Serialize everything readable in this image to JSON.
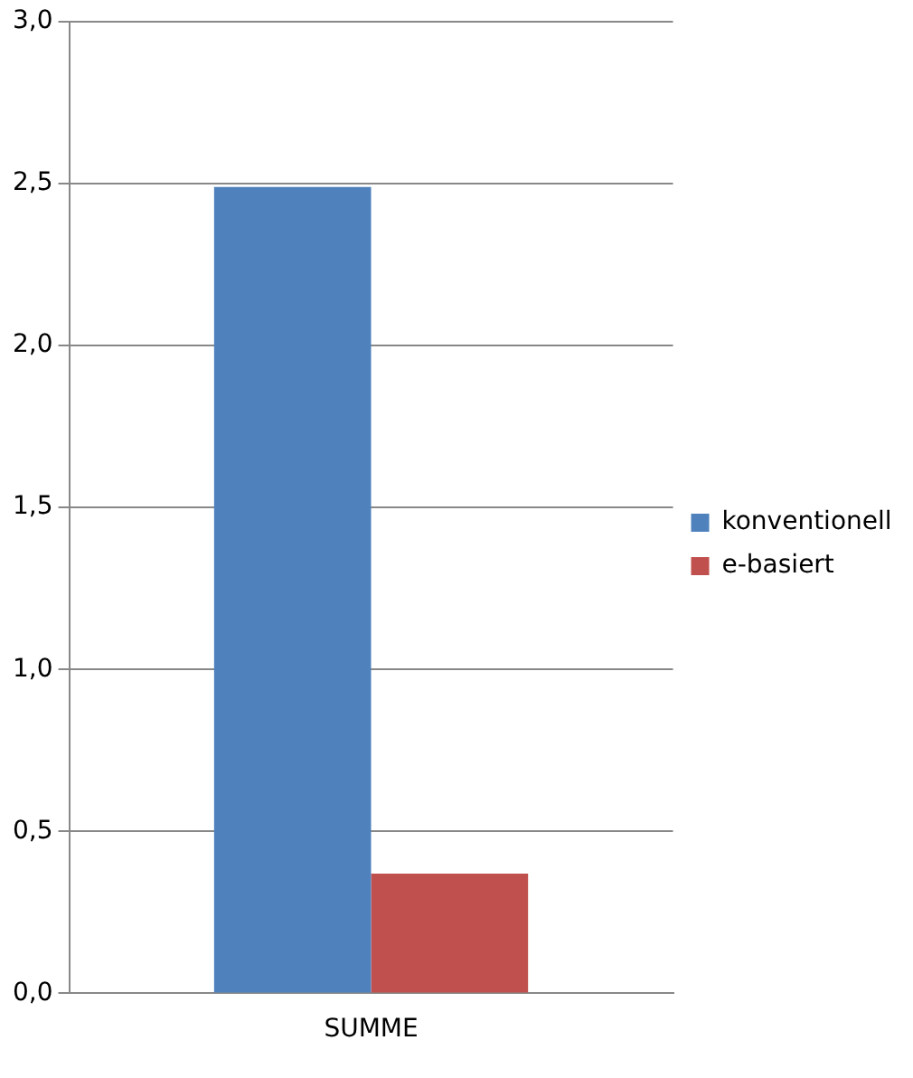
{
  "chart_data": {
    "type": "bar",
    "categories": [
      "SUMME"
    ],
    "series": [
      {
        "name": "konventionell",
        "color": "#4f81bd",
        "values": [
          2.49
        ]
      },
      {
        "name": "e-basiert",
        "color": "#c0504d",
        "values": [
          0.37
        ]
      }
    ],
    "ylim": [
      0,
      3
    ],
    "yticks": [
      {
        "value": 0,
        "label": "0,0"
      },
      {
        "value": 0.5,
        "label": "0,5"
      },
      {
        "value": 1,
        "label": "1,0"
      },
      {
        "value": 1.5,
        "label": "1,5"
      },
      {
        "value": 2,
        "label": "2,0"
      },
      {
        "value": 2.5,
        "label": "2,5"
      },
      {
        "value": 3,
        "label": "3,0"
      }
    ],
    "grid": "y",
    "legend": "right"
  }
}
